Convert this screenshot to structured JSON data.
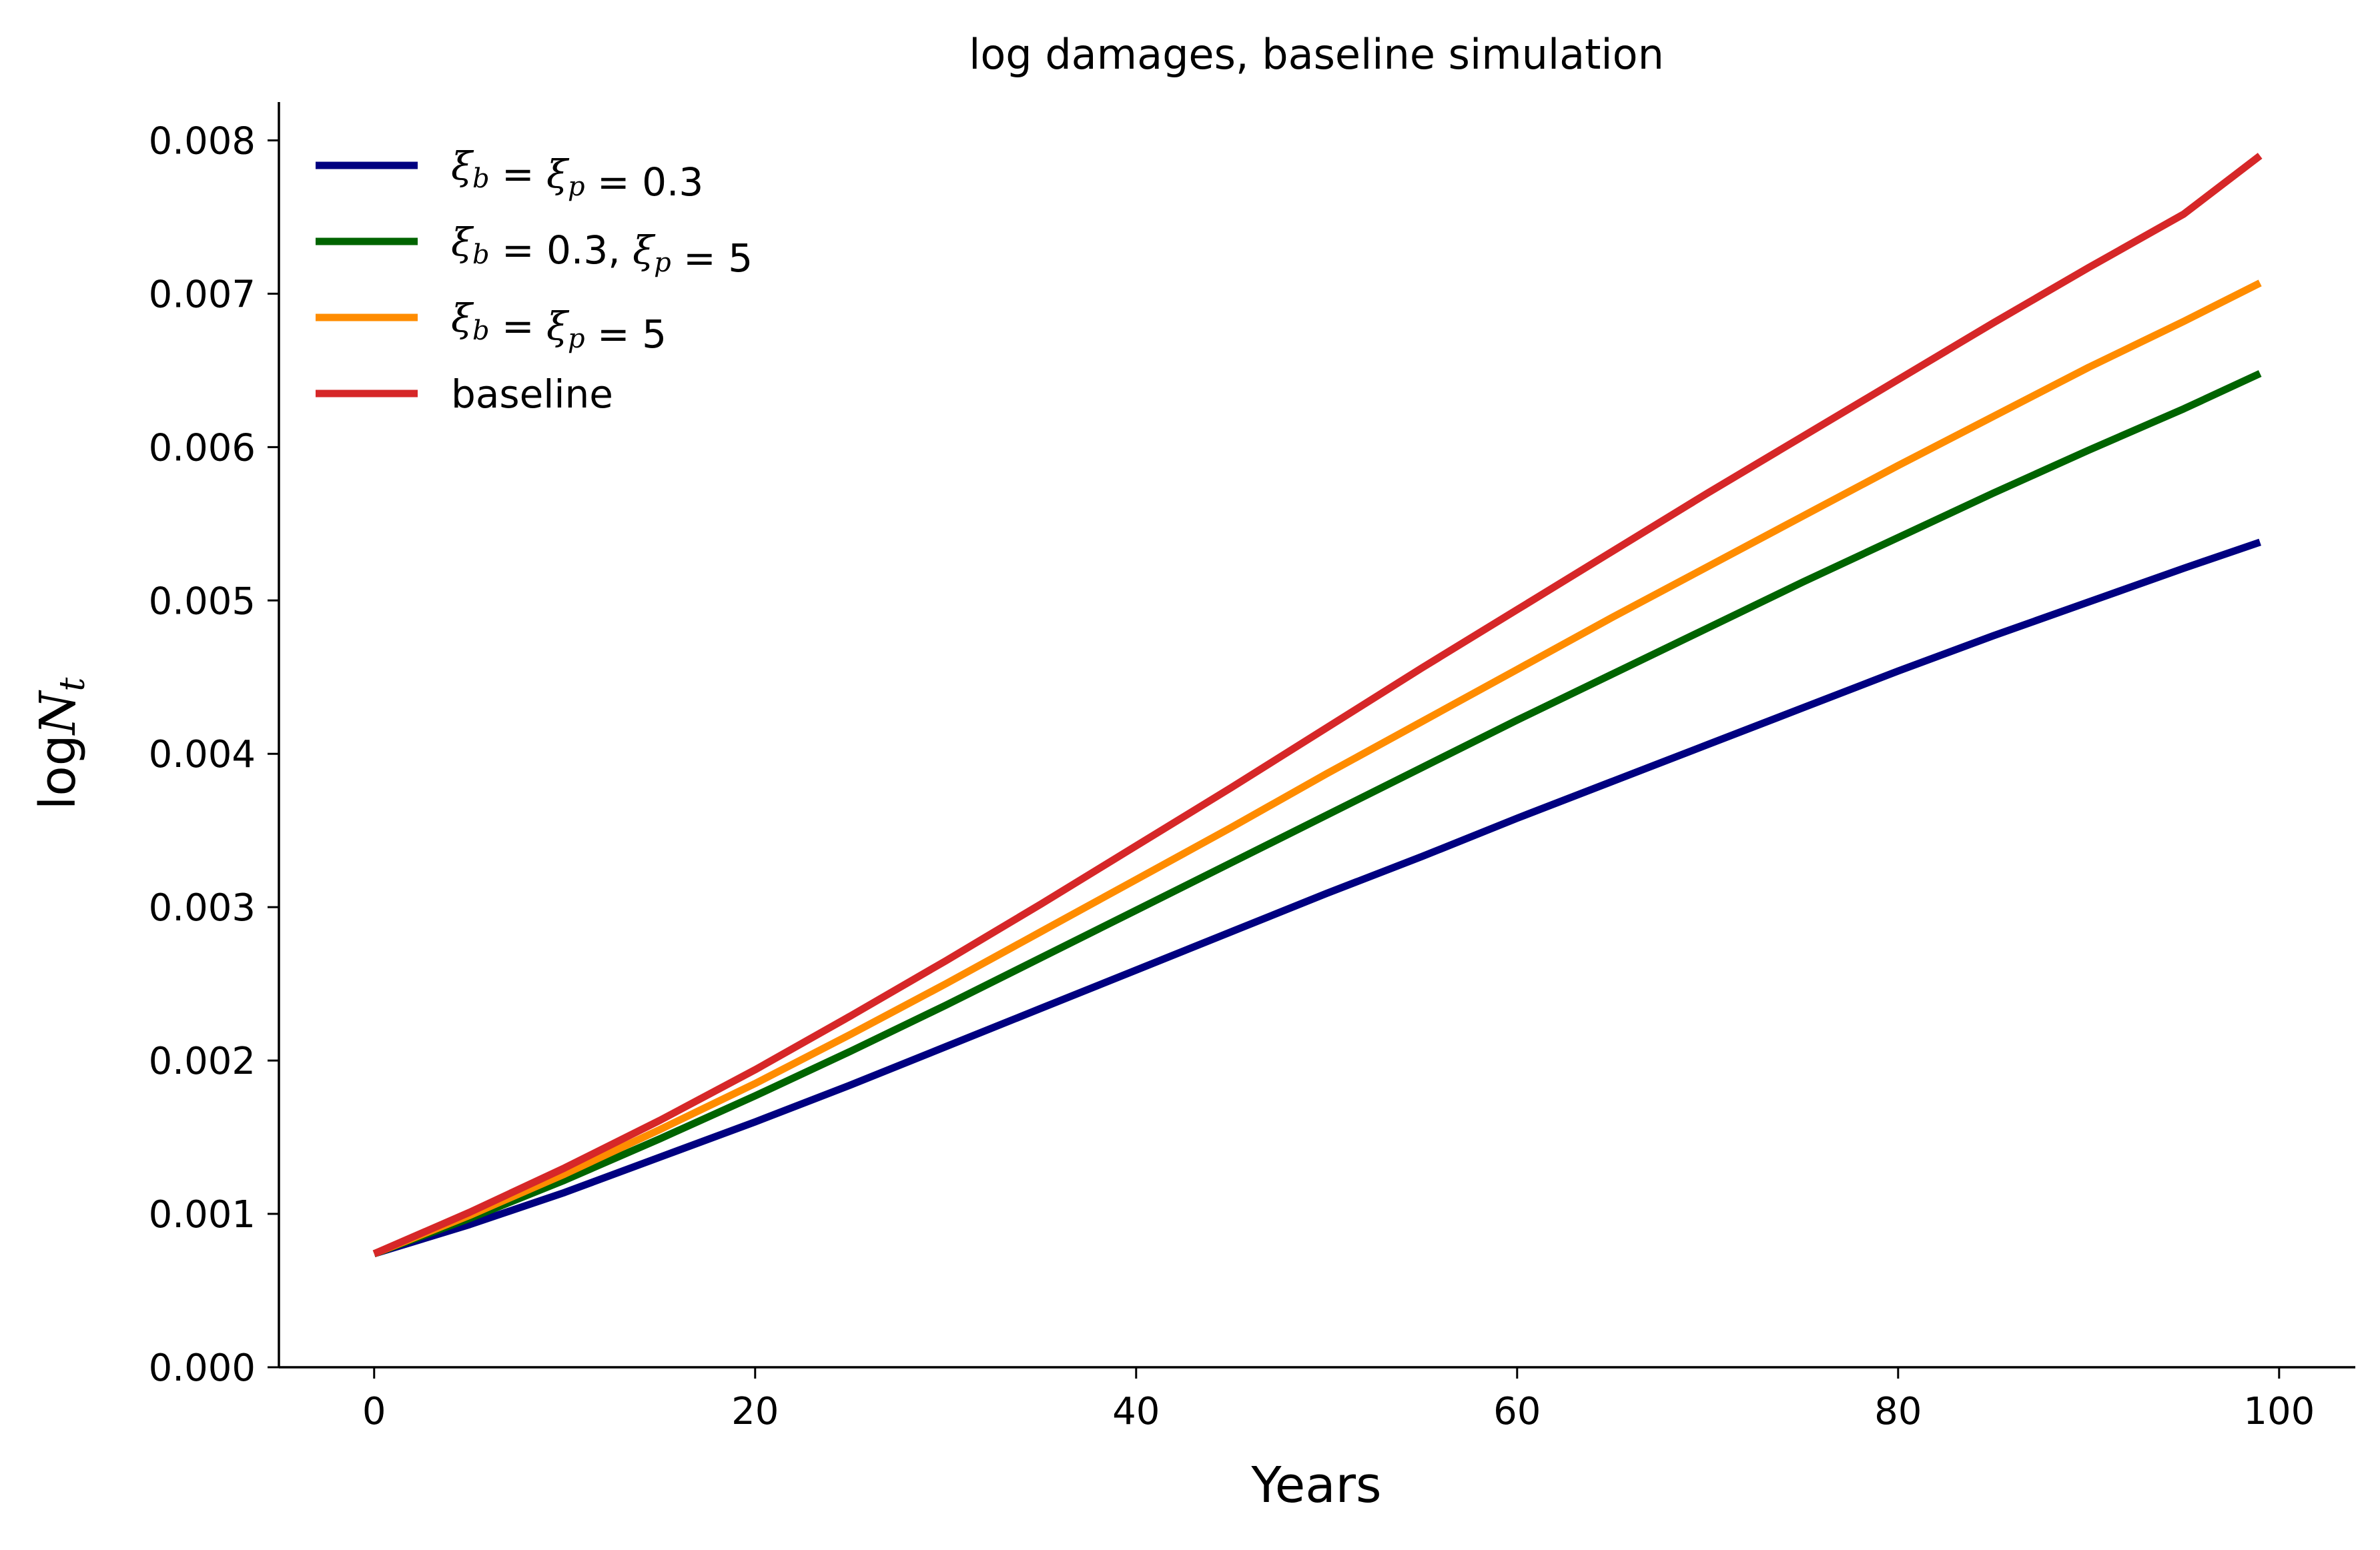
{
  "chart_data": {
    "type": "line",
    "title": "log damages, baseline simulation",
    "xlabel": "Years",
    "ylabel": {
      "main": "log",
      "var": "N",
      "sub": "t"
    },
    "xlim": [
      -5,
      104
    ],
    "ylim": [
      0,
      0.00825
    ],
    "xticks": [
      0,
      20,
      40,
      60,
      80,
      100
    ],
    "xtick_labels": [
      "0",
      "20",
      "40",
      "60",
      "80",
      "100"
    ],
    "yticks": [
      0,
      0.001,
      0.002,
      0.003,
      0.004,
      0.005,
      0.006,
      0.007,
      0.008
    ],
    "ytick_labels": [
      "0.000",
      "0.001",
      "0.002",
      "0.003",
      "0.004",
      "0.005",
      "0.006",
      "0.007",
      "0.008"
    ],
    "grid": false,
    "legend_position": "top-left",
    "x": [
      0,
      5,
      10,
      15,
      20,
      25,
      30,
      35,
      40,
      45,
      50,
      55,
      60,
      65,
      70,
      75,
      80,
      85,
      90,
      95,
      99
    ],
    "series": [
      {
        "name": "ξb = ξp = 0.3",
        "legend": [
          [
            "ξ",
            "b"
          ],
          " = ",
          [
            "ξ",
            "p"
          ],
          " = 0.3"
        ],
        "color": "#000080",
        "values": [
          0.00074,
          0.00093,
          0.00114,
          0.00137,
          0.0016,
          0.00184,
          0.00209,
          0.00234,
          0.00259,
          0.00284,
          0.00309,
          0.00333,
          0.00358,
          0.00382,
          0.00406,
          0.0043,
          0.00454,
          0.00477,
          0.00499,
          0.00521,
          0.00538
        ]
      },
      {
        "name": "ξb = 0.3, ξp = 5",
        "legend": [
          [
            "ξ",
            "b"
          ],
          " = 0.3, ",
          [
            "ξ",
            "p"
          ],
          " = 5"
        ],
        "color": "#006400",
        "values": [
          0.00074,
          0.00097,
          0.00122,
          0.00149,
          0.00177,
          0.00206,
          0.00236,
          0.00267,
          0.00298,
          0.00329,
          0.0036,
          0.00391,
          0.00422,
          0.00452,
          0.00482,
          0.00512,
          0.00541,
          0.0057,
          0.00598,
          0.00625,
          0.00648
        ]
      },
      {
        "name": "ξb = ξp = 5",
        "legend": [
          [
            "ξ",
            "b"
          ],
          " = ",
          [
            "ξ",
            "p"
          ],
          " = 5"
        ],
        "color": "#ff8c00",
        "values": [
          0.00074,
          0.00099,
          0.00126,
          0.00155,
          0.00185,
          0.00217,
          0.0025,
          0.00284,
          0.00318,
          0.00352,
          0.00387,
          0.00421,
          0.00455,
          0.00489,
          0.00522,
          0.00555,
          0.00588,
          0.0062,
          0.00652,
          0.00682,
          0.00707
        ]
      },
      {
        "name": "baseline",
        "legend": [
          "baseline"
        ],
        "color": "#d62728",
        "values": [
          0.00074,
          0.00101,
          0.0013,
          0.00161,
          0.00194,
          0.00229,
          0.00265,
          0.00302,
          0.0034,
          0.00378,
          0.00417,
          0.00456,
          0.00494,
          0.00532,
          0.0057,
          0.00607,
          0.00644,
          0.00681,
          0.00717,
          0.00752,
          0.0079
        ]
      }
    ]
  }
}
